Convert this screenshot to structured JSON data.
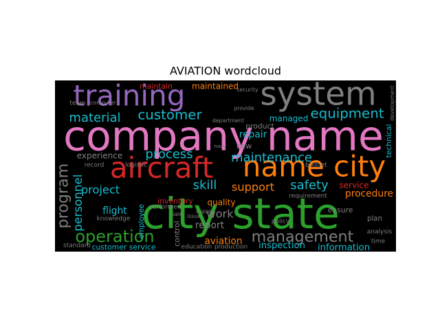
{
  "chart_data": {
    "type": "wordcloud",
    "title": "AVIATION wordcloud",
    "words": [
      "company name",
      "city state",
      "training",
      "system",
      "aircraft",
      "name city",
      "customer",
      "equipment",
      "material",
      "management",
      "operation",
      "maintenance",
      "process",
      "program",
      "personnel",
      "safety",
      "skill",
      "support",
      "project",
      "flight",
      "work",
      "aviation",
      "inspection",
      "information",
      "report",
      "procedure",
      "service",
      "quality",
      "experience",
      "repair",
      "managed",
      "maintain",
      "maintained",
      "customer service",
      "inventory",
      "technical",
      "control",
      "employee",
      "product",
      "record",
      "logistic",
      "performed",
      "knowledge",
      "budget",
      "requirement",
      "new",
      "ensure",
      "plan",
      "analysis",
      "time",
      "standard",
      "education",
      "production",
      "department",
      "security",
      "development",
      "team",
      "computer",
      "policy",
      "supply",
      "issue",
      "sale",
      "provide",
      "navy"
    ],
    "values": [
      100,
      103,
      70,
      78,
      70,
      70,
      33,
      33,
      30,
      37,
      40,
      30,
      30,
      37,
      28,
      30,
      30,
      27,
      27,
      23,
      27,
      23,
      22,
      22,
      23,
      23,
      20,
      20,
      20,
      23,
      20,
      18,
      20,
      18,
      18,
      18,
      18,
      17,
      18,
      15,
      15,
      15,
      15,
      15,
      15,
      18,
      18,
      17,
      15,
      15,
      15,
      15,
      15,
      13,
      13,
      13,
      15,
      13,
      15,
      13,
      13,
      13,
      13,
      12
    ],
    "colors": [
      "#e377c2",
      "#2ca02c",
      "#9467bd",
      "#7f7f7f",
      "#d62728",
      "#ff7f0e",
      "#17becf",
      "#17becf",
      "#17becf",
      "#7f7f7f",
      "#2ca02c",
      "#17becf",
      "#17becf",
      "#7f7f7f",
      "#17becf",
      "#17becf",
      "#17becf",
      "#ff7f0e",
      "#17becf",
      "#17becf",
      "#7f7f7f",
      "#ff7f0e",
      "#17becf",
      "#17becf",
      "#7f7f7f",
      "#ff7f0e",
      "#d62728",
      "#ff7f0e",
      "#7f7f7f",
      "#17becf",
      "#17becf",
      "#d62728",
      "#ff7f0e",
      "#17becf",
      "#d62728",
      "#17becf",
      "#7f7f7f",
      "#17becf",
      "#7f7f7f",
      "#7f7f7f",
      "#7f7f7f",
      "#7f7f7f",
      "#7f7f7f",
      "#7f7f7f",
      "#7f7f7f",
      "#7f7f7f",
      "#7f7f7f",
      "#7f7f7f",
      "#7f7f7f",
      "#7f7f7f",
      "#7f7f7f",
      "#7f7f7f",
      "#7f7f7f",
      "#7f7f7f",
      "#7f7f7f",
      "#7f7f7f",
      "#7f7f7f",
      "#7f7f7f",
      "#7f7f7f",
      "#7f7f7f",
      "#7f7f7f",
      "#7f7f7f",
      "#7f7f7f",
      "#7f7f7f"
    ],
    "background": "#000000"
  }
}
